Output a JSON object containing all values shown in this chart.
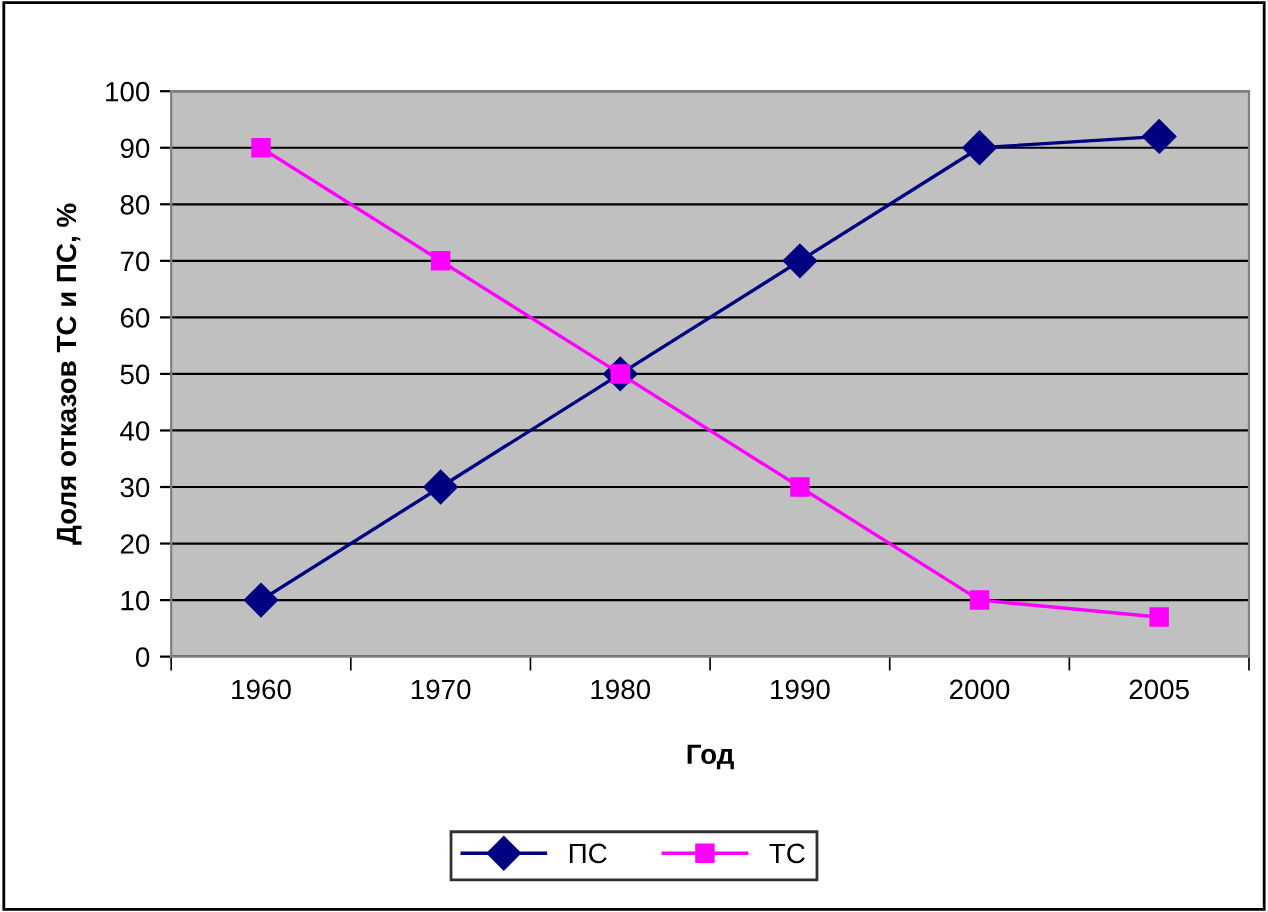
{
  "chart_data": {
    "type": "line",
    "xlabel": "Год",
    "ylabel": "Доля отказов ТС и ПС, %",
    "categories": [
      "1960",
      "1970",
      "1980",
      "1990",
      "2000",
      "2005"
    ],
    "series": [
      {
        "name": "ПС",
        "color": "#000080",
        "marker": "diamond",
        "values": [
          10,
          30,
          50,
          70,
          90,
          92
        ]
      },
      {
        "name": "ТС",
        "color": "#ff00ff",
        "marker": "square",
        "values": [
          90,
          70,
          50,
          30,
          10,
          7
        ]
      }
    ],
    "ylim": [
      0,
      100
    ],
    "yticks": [
      0,
      10,
      20,
      30,
      40,
      50,
      60,
      70,
      80,
      90,
      100
    ],
    "grid": "y",
    "legend": "bottom",
    "line_style": "solid"
  }
}
